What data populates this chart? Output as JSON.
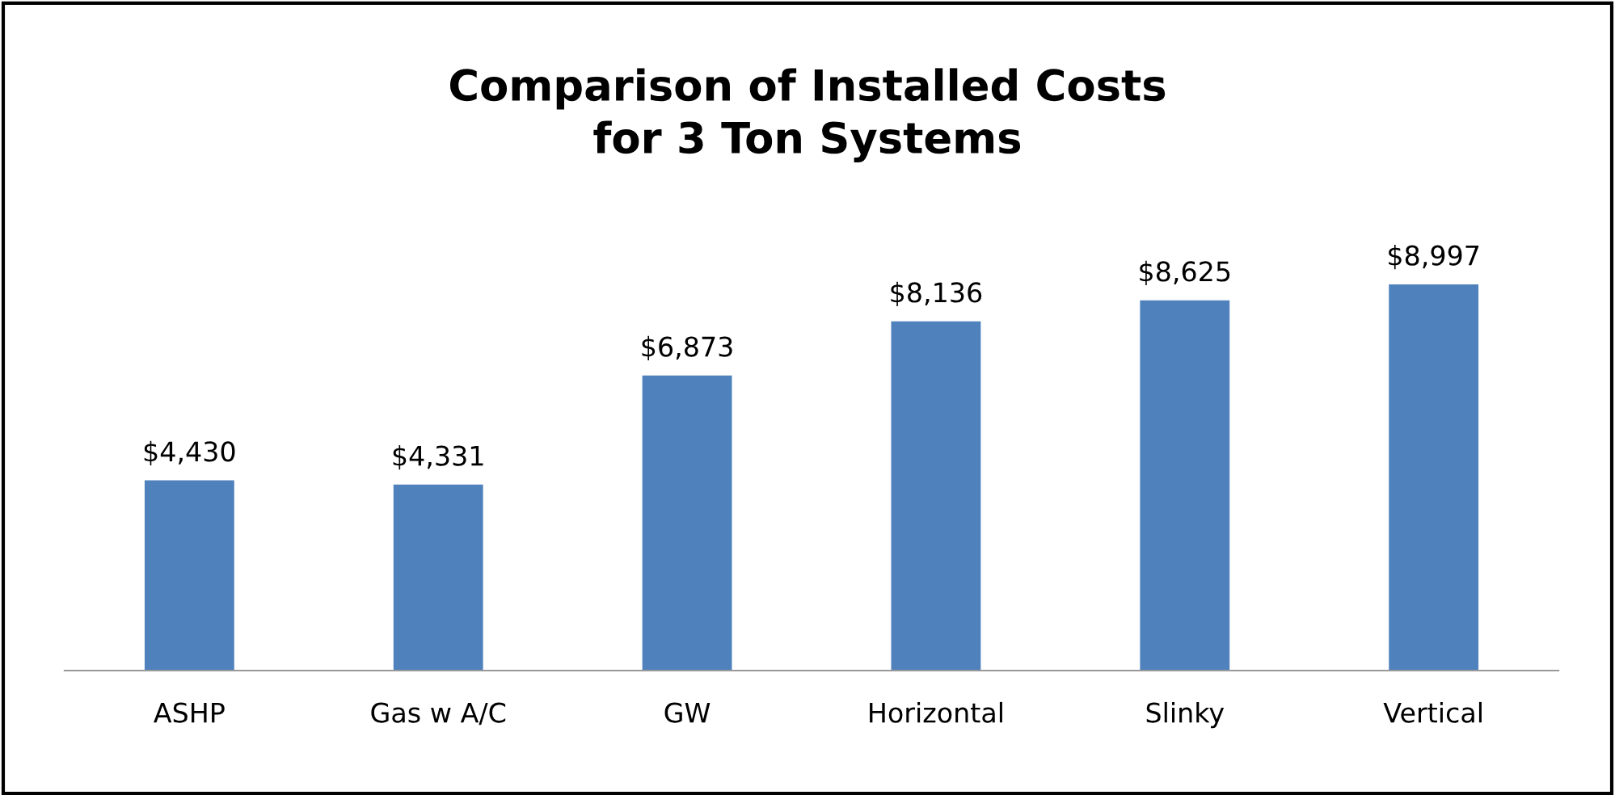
{
  "chart_data": {
    "type": "bar",
    "title": "Comparison of Installed Costs\nfor 3 Ton Systems",
    "categories": [
      "ASHP",
      "Gas w A/C",
      "GW",
      "Horizontal",
      "Slinky",
      "Vertical"
    ],
    "values": [
      4430,
      4331,
      6873,
      8136,
      8625,
      8997
    ],
    "value_labels": [
      "$4,430",
      "$4,331",
      "$6,873",
      "$8,136",
      "$8,625",
      "$8,997"
    ],
    "color": "#4f81bd"
  }
}
